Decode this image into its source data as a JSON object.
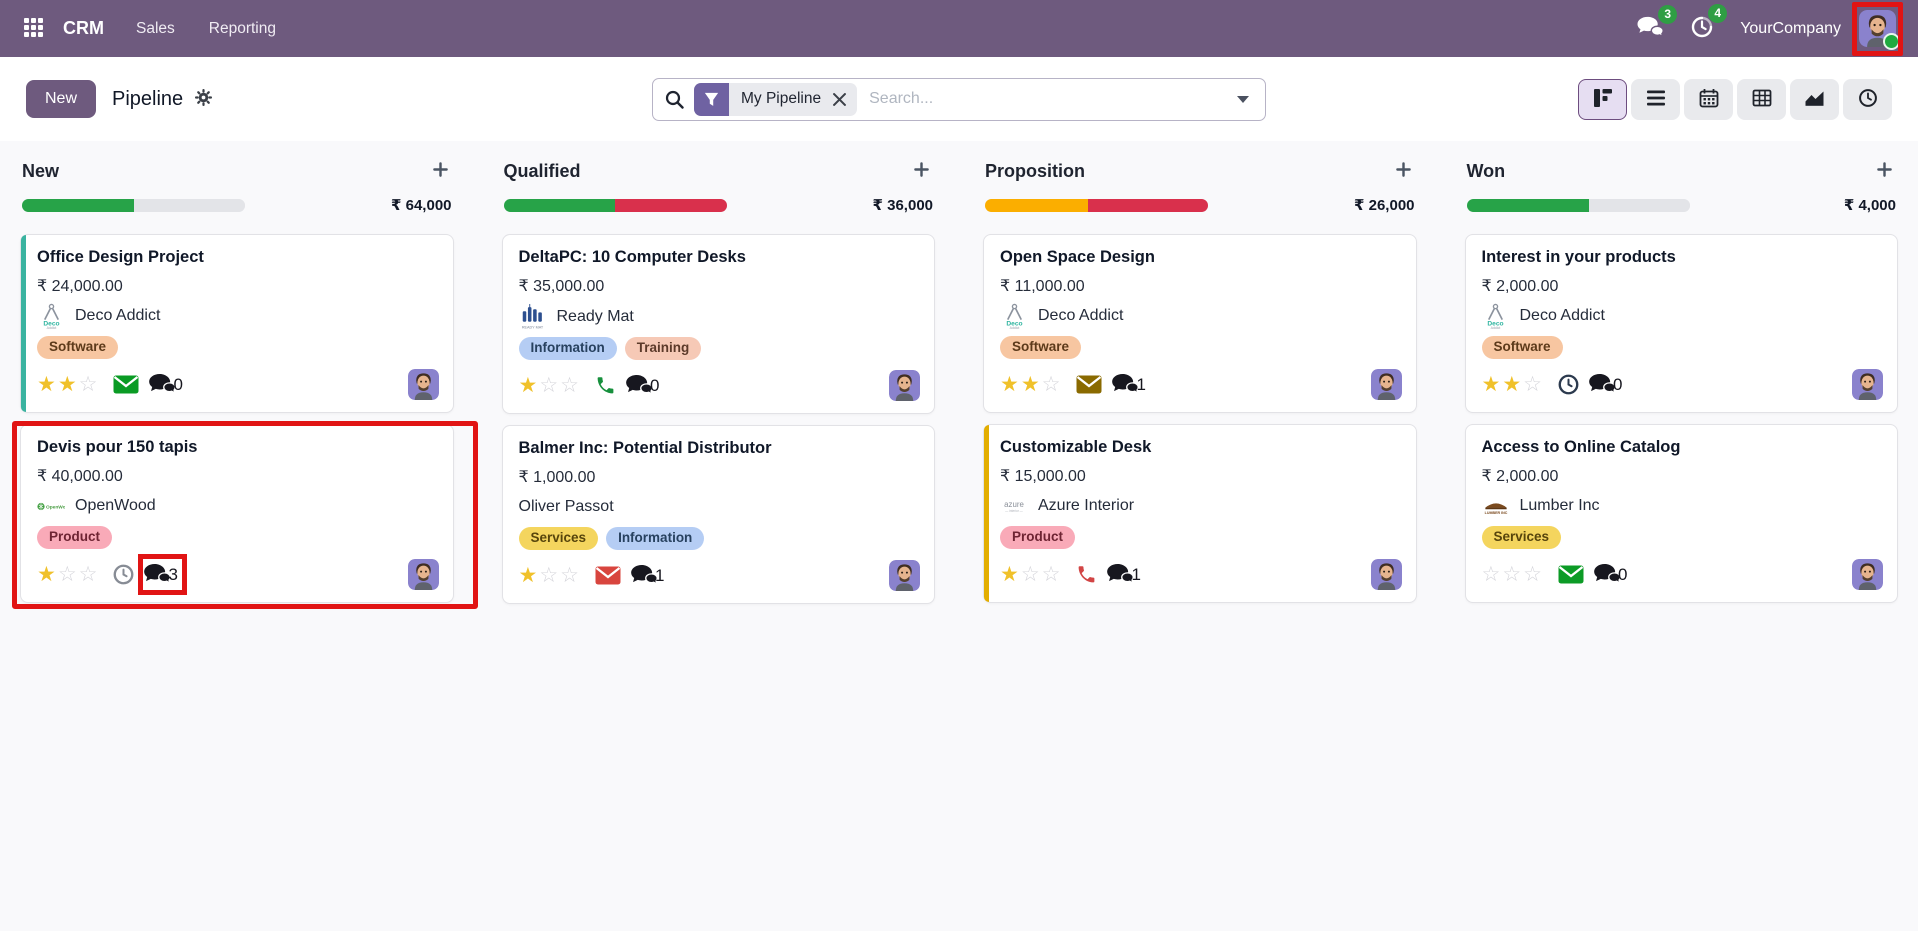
{
  "navbar": {
    "brand": "CRM",
    "menus": [
      {
        "label": "Sales"
      },
      {
        "label": "Reporting"
      }
    ],
    "icons": [
      "apps-grid-icon",
      "chat-bubbles-icon",
      "activity-clock-icon"
    ],
    "messages_badge": "3",
    "activities_badge": "4",
    "company": "YourCompany",
    "badge_color": "#2f9e44",
    "bar_color": "#6e5a7e"
  },
  "control_panel": {
    "new_button": "New",
    "title": "Pipeline",
    "title_icons": [
      "gear-icon"
    ],
    "search": {
      "facet_label": "My Pipeline",
      "placeholder": "Search...",
      "icons": [
        "search-icon",
        "filter-funnel-icon",
        "remove-facet-icon",
        "dropdown-caret-icon"
      ]
    },
    "views": [
      "kanban",
      "list",
      "calendar",
      "pivot",
      "graph",
      "activity"
    ],
    "active_view": "kanban"
  },
  "board": {
    "stars_total": 3,
    "annotation_color": "#e11414",
    "columns": [
      {
        "name": "New",
        "total": "₹ 64,000",
        "progress": [
          {
            "color": "#27a348",
            "pct": 50
          },
          {
            "color": "#e3e4e8",
            "pct": 50
          }
        ],
        "cards": [
          {
            "title": "Office Design Project",
            "amount": "₹ 24,000.00",
            "partner": "Deco Addict",
            "logo": "deco-addict",
            "stripe": "#3ab3a0",
            "tags": [
              {
                "label": "Software",
                "bg": "#f7c6a1",
                "fg": "#5c3a1a"
              }
            ],
            "stars": 2,
            "activity": {
              "icon": "mail",
              "color": "#0a9b24"
            },
            "messages": "0"
          },
          {
            "title": "Devis pour 150 tapis",
            "amount": "₹ 40,000.00",
            "partner": "OpenWood",
            "logo": "openwood",
            "stripe": null,
            "tags": [
              {
                "label": "Product",
                "bg": "#f9aab8",
                "fg": "#6e2433"
              }
            ],
            "stars": 1,
            "activity": {
              "icon": "clock",
              "color": "#878c95"
            },
            "messages": "3",
            "annotate_card": true,
            "annotate_messages": true
          }
        ]
      },
      {
        "name": "Qualified",
        "total": "₹ 36,000",
        "progress": [
          {
            "color": "#27a348",
            "pct": 50
          },
          {
            "color": "#d9304c",
            "pct": 50
          }
        ],
        "cards": [
          {
            "title": "DeltaPC: 10 Computer Desks",
            "amount": "₹ 35,000.00",
            "partner": "Ready Mat",
            "logo": "ready-mat",
            "stripe": null,
            "tags": [
              {
                "label": "Information",
                "bg": "#b5cdf4",
                "fg": "#27415f"
              },
              {
                "label": "Training",
                "bg": "#f6c9b6",
                "fg": "#5c3a2a"
              }
            ],
            "stars": 1,
            "activity": {
              "icon": "phone",
              "color": "#17903d"
            },
            "messages": "0"
          },
          {
            "title": "Balmer Inc: Potential Distributor",
            "amount": "₹ 1,000.00",
            "partner": "Oliver Passot",
            "logo": null,
            "stripe": null,
            "tags": [
              {
                "label": "Services",
                "bg": "#f4d55e",
                "fg": "#57450c"
              },
              {
                "label": "Information",
                "bg": "#b5cdf4",
                "fg": "#27415f"
              }
            ],
            "stars": 1,
            "activity": {
              "icon": "mail",
              "color": "#d8453e"
            },
            "messages": "1"
          }
        ]
      },
      {
        "name": "Proposition",
        "total": "₹ 26,000",
        "progress": [
          {
            "color": "#fbae00",
            "pct": 46
          },
          {
            "color": "#d9304c",
            "pct": 54
          }
        ],
        "cards": [
          {
            "title": "Open Space Design",
            "amount": "₹ 11,000.00",
            "partner": "Deco Addict",
            "logo": "deco-addict",
            "stripe": null,
            "tags": [
              {
                "label": "Software",
                "bg": "#f7c6a1",
                "fg": "#5c3a1a"
              }
            ],
            "stars": 2,
            "activity": {
              "icon": "mail",
              "color": "#8a6a00"
            },
            "messages": "1"
          },
          {
            "title": "Customizable Desk",
            "amount": "₹ 15,000.00",
            "partner": "Azure Interior",
            "logo": "azure",
            "stripe": "#e3ae00",
            "tags": [
              {
                "label": "Product",
                "bg": "#f9aab8",
                "fg": "#6e2433"
              }
            ],
            "stars": 1,
            "activity": {
              "icon": "phone",
              "color": "#d24545"
            },
            "messages": "1"
          }
        ]
      },
      {
        "name": "Won",
        "total": "₹ 4,000",
        "progress": [
          {
            "color": "#27a348",
            "pct": 55
          },
          {
            "color": "#e3e4e8",
            "pct": 45
          }
        ],
        "cards": [
          {
            "title": "Interest in your products",
            "amount": "₹ 2,000.00",
            "partner": "Deco Addict",
            "logo": "deco-addict",
            "stripe": null,
            "tags": [
              {
                "label": "Software",
                "bg": "#f7c6a1",
                "fg": "#5c3a1a"
              }
            ],
            "stars": 2,
            "activity": {
              "icon": "clock",
              "color": "#2c3a4e"
            },
            "messages": "0"
          },
          {
            "title": "Access to Online Catalog",
            "amount": "₹ 2,000.00",
            "partner": "Lumber Inc",
            "logo": "lumber",
            "stripe": null,
            "tags": [
              {
                "label": "Services",
                "bg": "#f4d55e",
                "fg": "#57450c"
              }
            ],
            "stars": 0,
            "activity": {
              "icon": "mail",
              "color": "#0c9b26"
            },
            "messages": "0"
          }
        ]
      }
    ]
  }
}
